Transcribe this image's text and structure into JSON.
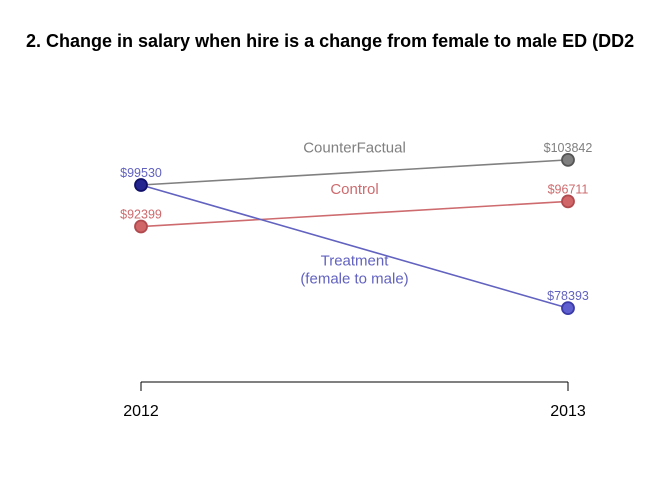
{
  "chart_data": {
    "type": "line",
    "title": "2. Change in salary when hire is a change from female to male ED (DD2",
    "categories": [
      "2012",
      "2013"
    ],
    "ylim": [
      70000,
      110000
    ],
    "series": [
      {
        "name": "CounterFactual",
        "values": [
          99530,
          103842
        ],
        "labels": [
          "",
          "$103842"
        ],
        "color": "#808080",
        "point_fill": "#808080",
        "point_stroke": "#555555",
        "label_lines": [
          "CounterFactual"
        ]
      },
      {
        "name": "Control",
        "values": [
          92399,
          96711
        ],
        "labels": [
          "$92399",
          "$96711"
        ],
        "color": "#CD6B6E",
        "point_fill": "#D06668",
        "point_stroke": "#B04A4E",
        "label_lines": [
          "Control"
        ]
      },
      {
        "name": "Treatment (female to male)",
        "values": [
          99530,
          78393
        ],
        "labels": [
          "$99530",
          "$78393"
        ],
        "color": "#6262C0",
        "point_fill": "#5F5FD0",
        "point_stroke": "#3A3AA8",
        "start_point_fill": "#252590",
        "start_point_stroke": "#10106A",
        "label_lines": [
          "Treatment",
          "(female to male)"
        ]
      }
    ]
  }
}
